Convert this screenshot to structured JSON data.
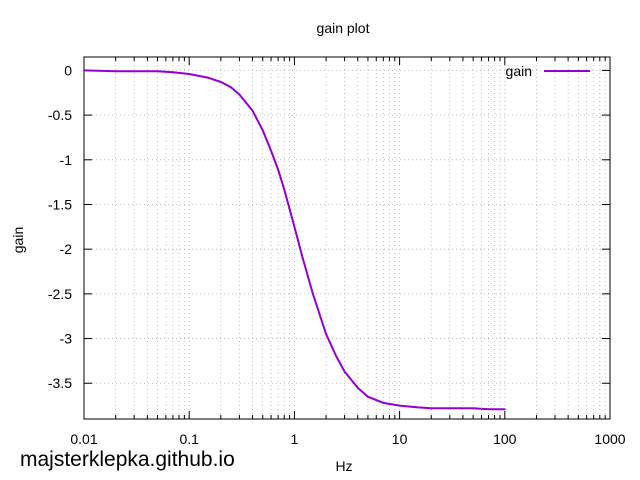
{
  "chart_data": {
    "type": "line",
    "title": "gain plot",
    "xlabel": "Hz",
    "ylabel": "gain",
    "x_scale": "log",
    "xlim": [
      0.01,
      1000
    ],
    "ylim": [
      -3.9,
      0.15
    ],
    "grid": true,
    "legend_position": "top-right",
    "x_ticks": [
      0.01,
      0.1,
      1,
      10,
      100,
      1000
    ],
    "x_tick_labels": [
      "0.01",
      "0.1",
      "1",
      "10",
      "100",
      "1000"
    ],
    "y_ticks": [
      0,
      -0.5,
      -1,
      -1.5,
      -2,
      -2.5,
      -3,
      -3.5
    ],
    "y_tick_labels": [
      "0",
      "-0.5",
      "-1",
      "-1.5",
      "-2",
      "-2.5",
      "-3",
      "-3.5"
    ],
    "series": [
      {
        "name": "gain",
        "color": "#9400d3",
        "x": [
          0.01,
          0.02,
          0.03,
          0.05,
          0.07,
          0.1,
          0.15,
          0.2,
          0.25,
          0.3,
          0.4,
          0.5,
          0.6,
          0.7,
          0.8,
          1,
          1.2,
          1.5,
          2,
          2.5,
          3,
          4,
          5,
          7,
          10,
          15,
          20,
          30,
          50,
          70,
          100
        ],
        "y": [
          0,
          -0.01,
          -0.01,
          -0.01,
          -0.02,
          -0.04,
          -0.08,
          -0.13,
          -0.19,
          -0.27,
          -0.45,
          -0.67,
          -0.9,
          -1.11,
          -1.33,
          -1.75,
          -2.1,
          -2.5,
          -2.95,
          -3.2,
          -3.37,
          -3.55,
          -3.65,
          -3.72,
          -3.75,
          -3.77,
          -3.78,
          -3.78,
          -3.78,
          -3.79,
          -3.79
        ]
      }
    ]
  },
  "watermark": "majsterklepka.github.io"
}
